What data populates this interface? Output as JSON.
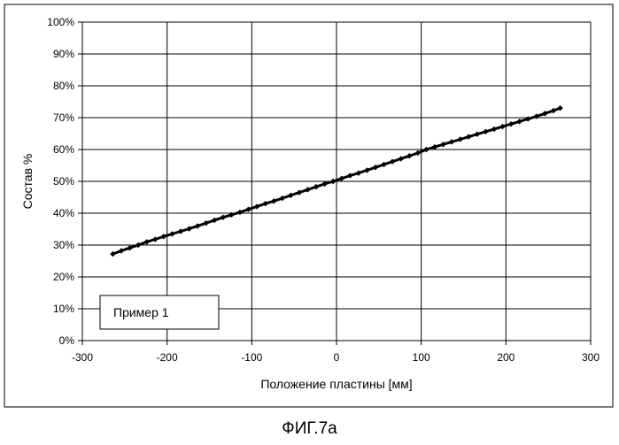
{
  "figure_caption": "ФИГ.7а",
  "chart_data": {
    "type": "scatter",
    "title": "",
    "xlabel": "Положение пластины [мм]",
    "ylabel": "Состав %",
    "xlim": [
      -300,
      300
    ],
    "ylim": [
      0,
      100
    ],
    "x_ticks": [
      -300,
      -200,
      -100,
      0,
      100,
      200,
      300
    ],
    "x_tick_labels": [
      "-300",
      "-200",
      "-100",
      "0",
      "100",
      "200",
      "300"
    ],
    "y_ticks": [
      0,
      10,
      20,
      30,
      40,
      50,
      60,
      70,
      80,
      90,
      100
    ],
    "y_tick_labels": [
      "0%",
      "10%",
      "20%",
      "30%",
      "40%",
      "50%",
      "60%",
      "70%",
      "80%",
      "90%",
      "100%"
    ],
    "grid": true,
    "legend_position": "bottom-left",
    "colors": {
      "marker": "#000000",
      "grid": "#000000",
      "frame": "#000000"
    },
    "series": [
      {
        "name": "Пример 1",
        "x": [
          -264,
          -254,
          -244,
          -234,
          -224,
          -214,
          -204,
          -194,
          -184,
          -174,
          -164,
          -154,
          -144,
          -134,
          -124,
          -114,
          -104,
          -94,
          -84,
          -74,
          -64,
          -54,
          -44,
          -34,
          -24,
          -14,
          -4,
          6,
          16,
          26,
          36,
          46,
          56,
          66,
          76,
          86,
          96,
          106,
          116,
          126,
          136,
          146,
          156,
          166,
          176,
          186,
          196,
          206,
          216,
          226,
          236,
          246,
          256,
          264
        ],
        "y": [
          27.2,
          28.2,
          29.1,
          30.0,
          31.0,
          31.8,
          32.7,
          33.5,
          34.3,
          35.1,
          36.0,
          36.9,
          37.8,
          38.7,
          39.5,
          40.3,
          41.2,
          42.1,
          43.0,
          43.8,
          44.7,
          45.6,
          46.5,
          47.4,
          48.3,
          49.2,
          50.0,
          50.9,
          51.8,
          52.6,
          53.5,
          54.4,
          55.3,
          56.2,
          57.1,
          58.0,
          58.9,
          60.0,
          60.8,
          61.6,
          62.4,
          63.2,
          64.0,
          64.8,
          65.6,
          66.4,
          67.2,
          68.0,
          68.8,
          69.6,
          70.4,
          71.3,
          72.2,
          73.0
        ]
      }
    ]
  }
}
